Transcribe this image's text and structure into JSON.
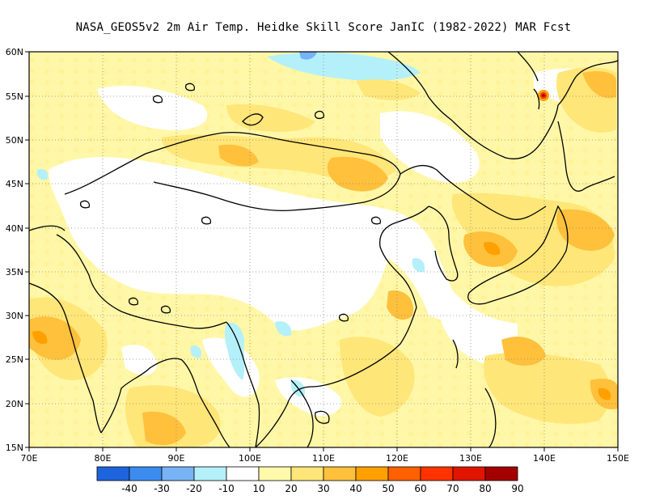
{
  "title": "NASA_GEOS5v2  2m Air Temp. Heidke Skill Score JanIC (1982-2022) MAR Fcst",
  "map": {
    "lon_labels": [
      "70E",
      "80E",
      "90E",
      "100E",
      "110E",
      "120E",
      "130E",
      "140E",
      "150E"
    ],
    "lat_labels": [
      "15N",
      "20N",
      "25N",
      "30N",
      "35N",
      "40N",
      "45N",
      "50N",
      "55N",
      "60N"
    ]
  },
  "colorbar": {
    "labels": [
      "-40",
      "-30",
      "-20",
      "-10",
      "10",
      "20",
      "30",
      "40",
      "50",
      "60",
      "70",
      "80",
      "90"
    ],
    "colors": [
      "#1e64dc",
      "#3c8cf0",
      "#78b4f5",
      "#b4f0fa",
      "#ffffff",
      "#fffaaa",
      "#ffe678",
      "#ffc03c",
      "#ffa000",
      "#ff6000",
      "#ff3200",
      "#e11400",
      "#a50000"
    ]
  }
}
